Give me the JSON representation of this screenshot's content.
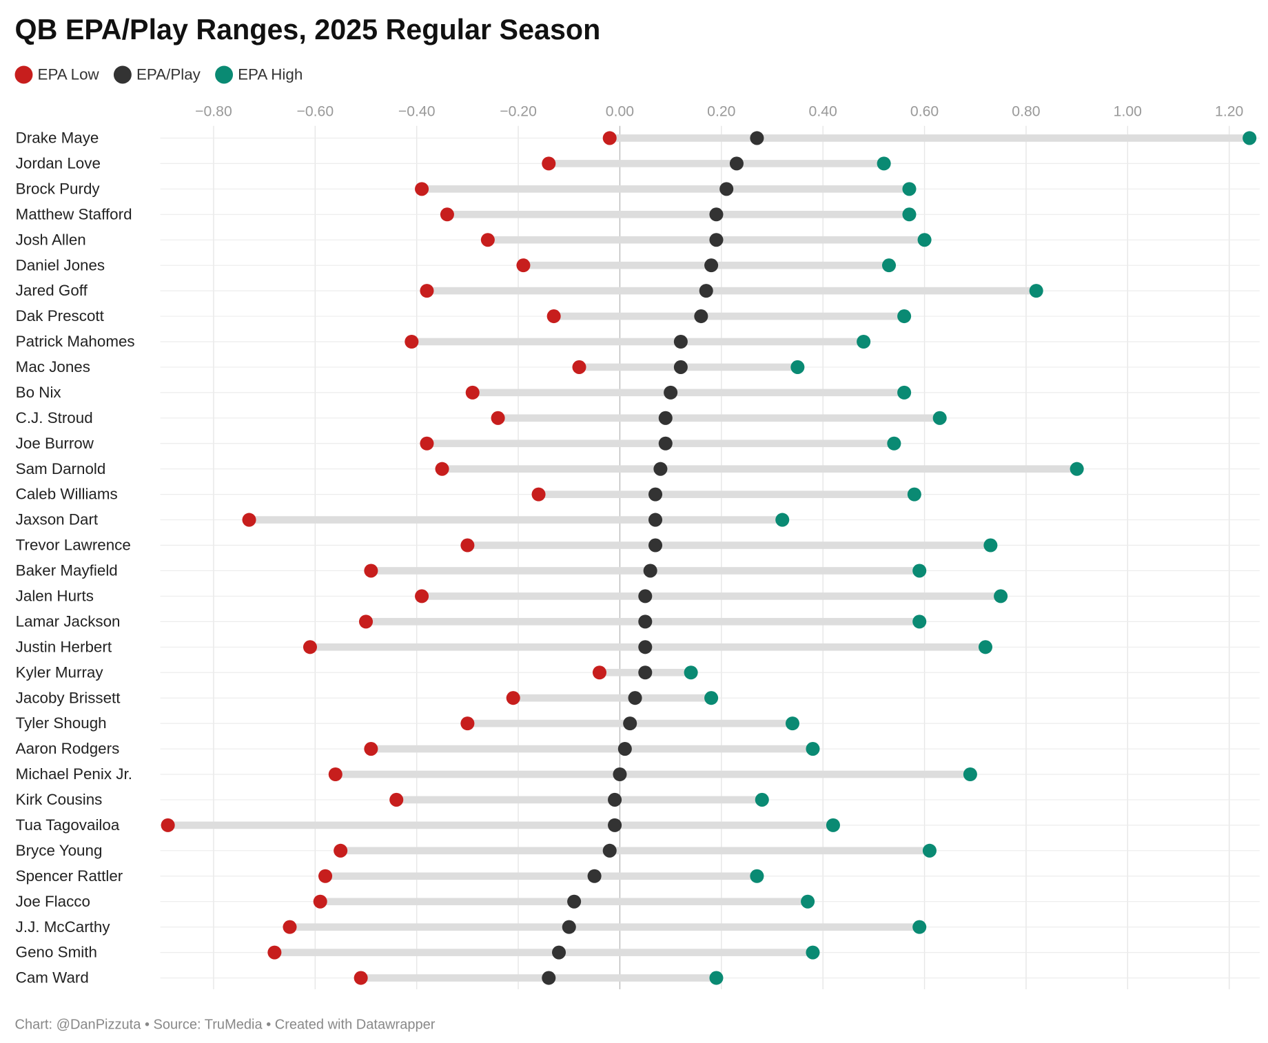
{
  "chart_data": {
    "type": "dot",
    "title": "QB EPA/Play Ranges, 2025 Regular Season",
    "footer": "Chart: @DanPizzuta • Source: TruMedia • Created with Datawrapper",
    "categories": [
      "Drake Maye",
      "Jordan Love",
      "Brock Purdy",
      "Matthew Stafford",
      "Josh Allen",
      "Daniel Jones",
      "Jared Goff",
      "Dak Prescott",
      "Patrick Mahomes",
      "Mac Jones",
      "Bo Nix",
      "C.J. Stroud",
      "Joe Burrow",
      "Sam Darnold",
      "Caleb Williams",
      "Jaxson Dart",
      "Trevor Lawrence",
      "Baker Mayfield",
      "Jalen Hurts",
      "Lamar Jackson",
      "Justin Herbert",
      "Kyler Murray",
      "Jacoby Brissett",
      "Tyler Shough",
      "Aaron Rodgers",
      "Michael Penix Jr.",
      "Kirk Cousins",
      "Tua Tagovailoa",
      "Bryce Young",
      "Spencer Rattler",
      "Joe Flacco",
      "J.J. McCarthy",
      "Geno Smith",
      "Cam Ward"
    ],
    "series": [
      {
        "name": "EPA Low",
        "color": "#c71e1d",
        "values": [
          -0.02,
          -0.14,
          -0.39,
          -0.34,
          -0.26,
          -0.19,
          -0.38,
          -0.13,
          -0.41,
          -0.08,
          -0.29,
          -0.24,
          -0.38,
          -0.35,
          -0.16,
          -0.73,
          -0.3,
          -0.49,
          -0.39,
          -0.5,
          -0.61,
          -0.04,
          -0.21,
          -0.3,
          -0.49,
          -0.56,
          -0.44,
          -0.89,
          -0.55,
          -0.58,
          -0.59,
          -0.65,
          -0.68,
          -0.51
        ]
      },
      {
        "name": "EPA/Play",
        "color": "#333333",
        "values": [
          0.27,
          0.23,
          0.21,
          0.19,
          0.19,
          0.18,
          0.17,
          0.16,
          0.12,
          0.12,
          0.1,
          0.09,
          0.09,
          0.08,
          0.07,
          0.07,
          0.07,
          0.06,
          0.05,
          0.05,
          0.05,
          0.05,
          0.03,
          0.02,
          0.01,
          0.0,
          -0.01,
          -0.01,
          -0.02,
          -0.05,
          -0.09,
          -0.1,
          -0.12,
          -0.14
        ]
      },
      {
        "name": "EPA High",
        "color": "#0a8a73",
        "values": [
          1.24,
          0.52,
          0.57,
          0.57,
          0.6,
          0.53,
          0.82,
          0.56,
          0.48,
          0.35,
          0.56,
          0.63,
          0.54,
          0.9,
          0.58,
          0.32,
          0.73,
          0.59,
          0.75,
          0.59,
          0.72,
          0.14,
          0.18,
          0.34,
          0.38,
          0.69,
          0.28,
          0.42,
          0.61,
          0.27,
          0.37,
          0.59,
          0.38,
          0.19
        ]
      }
    ],
    "xlim": [
      -0.905,
      1.26
    ],
    "xticks": [
      {
        "value": -0.8,
        "label": "−0.80"
      },
      {
        "value": -0.6,
        "label": "−0.60"
      },
      {
        "value": -0.4,
        "label": "−0.40"
      },
      {
        "value": -0.2,
        "label": "−0.20"
      },
      {
        "value": 0,
        "label": "0.00"
      },
      {
        "value": 0.2,
        "label": "0.20"
      },
      {
        "value": 0.4,
        "label": "0.40"
      },
      {
        "value": 0.6,
        "label": "0.60"
      },
      {
        "value": 0.8,
        "label": "0.80"
      },
      {
        "value": 1.0,
        "label": "1.00"
      },
      {
        "value": 1.2,
        "label": "1.20"
      }
    ],
    "grid": true,
    "range_color": "#dddddd"
  }
}
